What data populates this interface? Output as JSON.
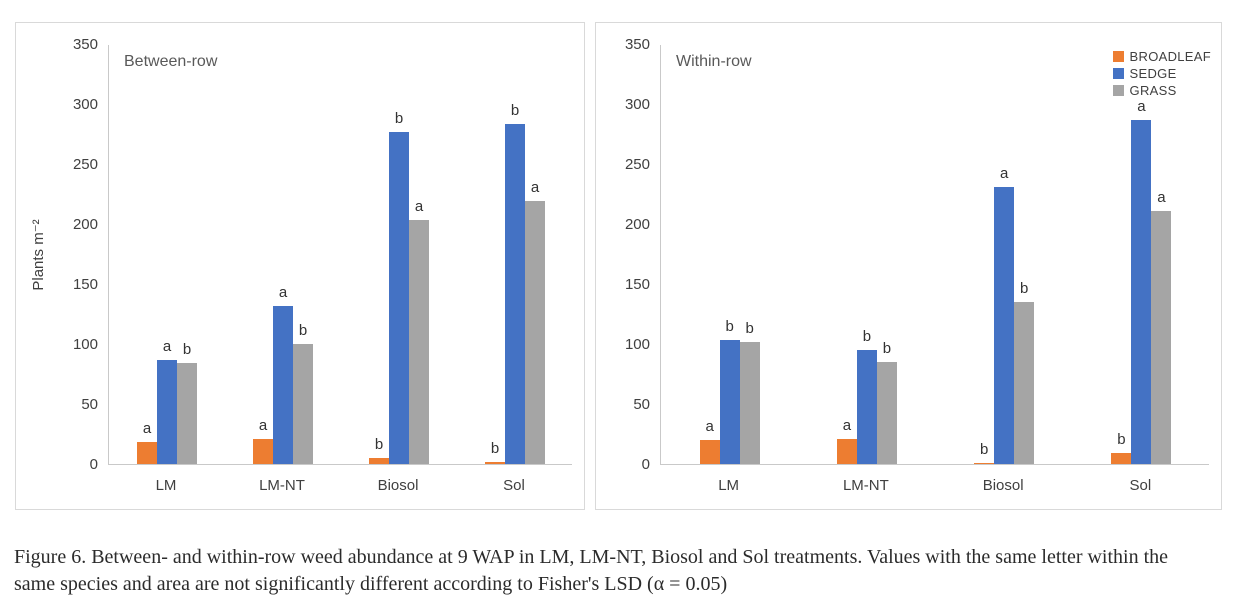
{
  "caption": "Figure 6. Between- and within-row weed abundance at 9 WAP in LM, LM-NT, Biosol and Sol treatments. Values with the same letter within the same species and area are not significantly different according to Fisher's LSD (α = 0.05)",
  "colors": {
    "broadleaf": "#ED7D31",
    "sedge": "#4472C4",
    "grass": "#A5A5A5",
    "axis_line": "#C9C9C9",
    "axis_text": "#404040",
    "title_text": "#595959"
  },
  "chart_data": [
    {
      "type": "bar",
      "title": "Between-row",
      "ylabel": "Plants m⁻²",
      "ylim": [
        0,
        350
      ],
      "yticks": [
        0,
        50,
        100,
        150,
        200,
        250,
        300,
        350
      ],
      "grid": false,
      "legend": false,
      "categories": [
        "LM",
        "LM-NT",
        "Biosol",
        "Sol"
      ],
      "series": [
        {
          "name": "BROADLEAF",
          "color": "#ED7D31",
          "values": [
            18,
            21,
            5,
            2
          ],
          "letters": [
            "a",
            "a",
            "b",
            "b"
          ]
        },
        {
          "name": "SEDGE",
          "color": "#4472C4",
          "values": [
            87,
            132,
            277,
            283
          ],
          "letters": [
            "a",
            "a",
            "b",
            "b"
          ]
        },
        {
          "name": "GRASS",
          "color": "#A5A5A5",
          "values": [
            84,
            100,
            203,
            219
          ],
          "letters": [
            "b",
            "b",
            "a",
            "a"
          ]
        }
      ]
    },
    {
      "type": "bar",
      "title": "Within-row",
      "ylabel": "",
      "ylim": [
        0,
        350
      ],
      "yticks": [
        0,
        50,
        100,
        150,
        200,
        250,
        300,
        350
      ],
      "grid": false,
      "legend": true,
      "legend_position": "top-right",
      "categories": [
        "LM",
        "LM-NT",
        "Biosol",
        "Sol"
      ],
      "series": [
        {
          "name": "BROADLEAF",
          "color": "#ED7D31",
          "values": [
            20,
            21,
            1,
            9
          ],
          "letters": [
            "a",
            "a",
            "b",
            "b"
          ]
        },
        {
          "name": "SEDGE",
          "color": "#4472C4",
          "values": [
            103,
            95,
            231,
            287
          ],
          "letters": [
            "b",
            "b",
            "a",
            "a"
          ]
        },
        {
          "name": "GRASS",
          "color": "#A5A5A5",
          "values": [
            102,
            85,
            135,
            211
          ],
          "letters": [
            "b",
            "b",
            "b",
            "a"
          ]
        }
      ]
    }
  ]
}
